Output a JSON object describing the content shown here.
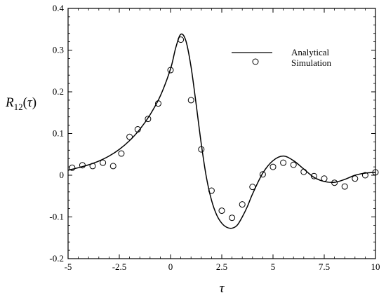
{
  "chart_data": {
    "type": "line",
    "title": "",
    "xlabel": "τ",
    "ylabel": {
      "base": "R",
      "subscript": "12",
      "open": "(",
      "arg": "τ",
      "close": ")"
    },
    "xlim": [
      -5,
      10
    ],
    "ylim": [
      -0.2,
      0.4
    ],
    "xticks": [
      -5,
      -2.5,
      0,
      2.5,
      5,
      7.5,
      10
    ],
    "xtick_labels": [
      "-5",
      "-2.5",
      "0",
      "2.5",
      "5",
      "7.5",
      "10"
    ],
    "yticks": [
      -0.2,
      -0.1,
      0,
      0.1,
      0.2,
      0.3,
      0.4
    ],
    "ytick_labels": [
      "-0.2",
      "-0.1",
      "0",
      "0.1",
      "0.2",
      "0.3",
      "0.4"
    ],
    "grid": false,
    "legend_position": "top-right",
    "series": [
      {
        "name": "Analytical",
        "style": "line",
        "color": "#000000",
        "x": [
          -5,
          -4.5,
          -4,
          -3.5,
          -3,
          -2.5,
          -2,
          -1.5,
          -1,
          -0.5,
          0,
          0.25,
          0.5,
          0.75,
          1,
          1.25,
          1.5,
          1.75,
          2,
          2.25,
          2.5,
          2.75,
          3,
          3.25,
          3.5,
          3.75,
          4,
          4.5,
          5,
          5.5,
          6,
          6.5,
          7,
          7.5,
          8,
          8.5,
          9,
          9.5,
          10
        ],
        "y": [
          0.012,
          0.018,
          0.025,
          0.034,
          0.046,
          0.062,
          0.083,
          0.11,
          0.145,
          0.19,
          0.255,
          0.305,
          0.338,
          0.322,
          0.26,
          0.17,
          0.075,
          -0.005,
          -0.06,
          -0.095,
          -0.115,
          -0.125,
          -0.127,
          -0.12,
          -0.1,
          -0.075,
          -0.045,
          0.005,
          0.035,
          0.046,
          0.035,
          0.015,
          -0.005,
          -0.015,
          -0.017,
          -0.01,
          0,
          0.005,
          0.007
        ]
      },
      {
        "name": "Simulation",
        "style": "markers",
        "marker": "circle",
        "color": "#000000",
        "x": [
          -4.8,
          -4.3,
          -3.8,
          -3.3,
          -2.8,
          -2.4,
          -2.0,
          -1.6,
          -1.1,
          -0.6,
          0.0,
          0.5,
          1.0,
          1.5,
          2.0,
          2.5,
          3.0,
          3.5,
          4.0,
          4.5,
          5.0,
          5.5,
          6.0,
          6.5,
          7.0,
          7.5,
          8.0,
          8.5,
          9.0,
          9.5,
          10.0
        ],
        "y": [
          0.018,
          0.024,
          0.022,
          0.03,
          0.022,
          0.052,
          0.092,
          0.11,
          0.135,
          0.172,
          0.252,
          0.325,
          0.18,
          0.062,
          -0.037,
          -0.085,
          -0.102,
          -0.07,
          -0.028,
          0.002,
          0.02,
          0.03,
          0.025,
          0.008,
          -0.002,
          -0.008,
          -0.018,
          -0.027,
          -0.008,
          0.0,
          0.007
        ]
      }
    ]
  }
}
